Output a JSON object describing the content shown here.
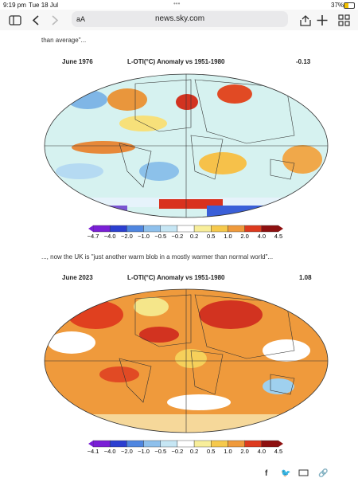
{
  "status_bar": {
    "time": "9:19 pm",
    "date": "Tue 18 Jul",
    "battery": "37%"
  },
  "toolbar": {
    "text_size": "aA",
    "url": "news.sky.com"
  },
  "article": {
    "caption_1": "than average\"...",
    "map_1": {
      "date": "June 1976",
      "title": "L-OTI(°C) Anomaly vs 1951-1980",
      "mean": "-0.13",
      "scale_labels": [
        "−4.7",
        "−4.0",
        "−2.0",
        "−1.0",
        "−0.5",
        "−0.2",
        "0.2",
        "0.5",
        "1.0",
        "2.0",
        "4.0",
        "4.5"
      ]
    },
    "caption_2": "..., now the UK is \"just another warm blob in a mostly warmer than normal world\"...",
    "map_2": {
      "date": "June 2023",
      "title": "L-OTI(°C) Anomaly vs 1951-1980",
      "mean": "1.08",
      "scale_labels": [
        "−4.1",
        "−4.0",
        "−2.0",
        "−1.0",
        "−0.5",
        "−0.2",
        "0.2",
        "0.5",
        "1.0",
        "2.0",
        "4.0",
        "4.5"
      ]
    }
  }
}
